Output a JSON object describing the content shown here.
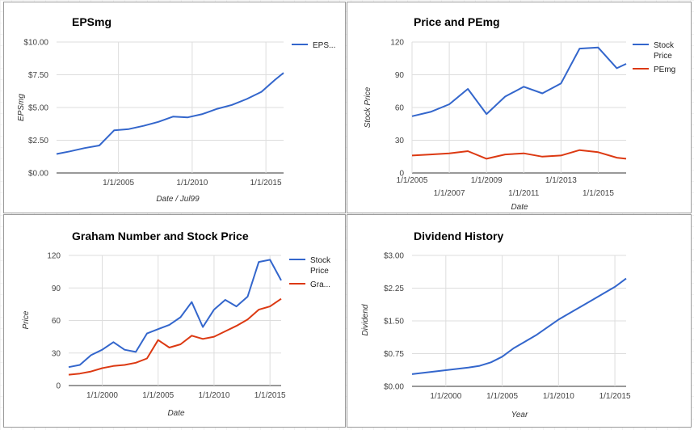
{
  "colors": {
    "blue": "#3366cc",
    "red": "#dc3912",
    "grid": "#dddddd",
    "axis": "#333333"
  },
  "chart_data": [
    {
      "type": "line",
      "title": "EPSmg",
      "xlabel": "Date / Jul99",
      "ylabel": "EPSmg",
      "x_ticks": [
        "1/1/2005",
        "1/1/2010",
        "1/1/2015"
      ],
      "y_ticks": [
        "$0.00",
        "$2.50",
        "$5.00",
        "$7.50",
        "$10.00"
      ],
      "xlim": [
        2000.8,
        2016.2
      ],
      "ylim": [
        0,
        10
      ],
      "grid": true,
      "legend_position": "right",
      "series": [
        {
          "name": "EPS...",
          "color": "#3366cc",
          "x": [
            2000.8,
            2001.7,
            2002.7,
            2003.7,
            2004.7,
            2005.7,
            2006.7,
            2007.7,
            2008.7,
            2009.7,
            2010.7,
            2011.7,
            2012.7,
            2013.7,
            2014.7,
            2015.6,
            2016.2
          ],
          "y": [
            1.45,
            1.65,
            1.9,
            2.1,
            3.25,
            3.35,
            3.6,
            3.9,
            4.3,
            4.25,
            4.5,
            4.9,
            5.2,
            5.65,
            6.2,
            7.1,
            7.65
          ]
        }
      ]
    },
    {
      "type": "line",
      "title": "Price and PEmg",
      "xlabel": "Date",
      "ylabel": "Stock Price",
      "x_ticks_top": [
        "1/1/2005",
        "1/1/2009",
        "1/1/2013"
      ],
      "x_ticks_bottom": [
        "1/1/2007",
        "1/1/2011",
        "1/1/2015"
      ],
      "y_ticks": [
        "0",
        "30",
        "60",
        "90",
        "120"
      ],
      "xlim": [
        2005,
        2016.5
      ],
      "ylim": [
        0,
        120
      ],
      "grid": true,
      "legend_position": "right",
      "series": [
        {
          "name": "Stock Price",
          "color": "#3366cc",
          "x": [
            2005,
            2006,
            2007,
            2008,
            2009,
            2010,
            2011,
            2012,
            2013,
            2014,
            2015,
            2016,
            2016.5
          ],
          "y": [
            52,
            56,
            63,
            77,
            54,
            70,
            79,
            73,
            82,
            114,
            115,
            96,
            100
          ]
        },
        {
          "name": "PEmg",
          "color": "#dc3912",
          "x": [
            2005,
            2006,
            2007,
            2008,
            2009,
            2010,
            2011,
            2012,
            2013,
            2014,
            2015,
            2016,
            2016.5
          ],
          "y": [
            16,
            17,
            18,
            20,
            13,
            17,
            18,
            15,
            16,
            21,
            19,
            14,
            13
          ]
        }
      ]
    },
    {
      "type": "line",
      "title": "Graham Number and Stock Price",
      "xlabel": "Date",
      "ylabel": "Price",
      "x_ticks": [
        "1/1/2000",
        "1/1/2005",
        "1/1/2010",
        "1/1/2015"
      ],
      "y_ticks": [
        "0",
        "30",
        "60",
        "90",
        "120"
      ],
      "xlim": [
        1997,
        2016
      ],
      "ylim": [
        0,
        120
      ],
      "grid": true,
      "legend_position": "right",
      "series": [
        {
          "name": "Stock Price",
          "color": "#3366cc",
          "x": [
            1997,
            1998,
            1999,
            2000,
            2001,
            2002,
            2003,
            2004,
            2005,
            2006,
            2007,
            2008,
            2009,
            2010,
            2011,
            2012,
            2013,
            2014,
            2015,
            2016
          ],
          "y": [
            17,
            19,
            28,
            33,
            40,
            33,
            31,
            48,
            52,
            56,
            63,
            77,
            54,
            70,
            79,
            73,
            82,
            114,
            116,
            97
          ]
        },
        {
          "name": "Gra...",
          "color": "#dc3912",
          "x": [
            1997,
            1998,
            1999,
            2000,
            2001,
            2002,
            2003,
            2004,
            2005,
            2006,
            2007,
            2008,
            2009,
            2010,
            2011,
            2012,
            2013,
            2014,
            2015,
            2016
          ],
          "y": [
            10,
            11,
            13,
            16,
            18,
            19,
            21,
            25,
            42,
            35,
            38,
            46,
            43,
            45,
            50,
            55,
            61,
            70,
            73,
            80
          ]
        }
      ]
    },
    {
      "type": "line",
      "title": "Dividend History",
      "xlabel": "Year",
      "ylabel": "Dividend",
      "x_ticks": [
        "1/1/2000",
        "1/1/2005",
        "1/1/2010",
        "1/1/2015"
      ],
      "y_ticks": [
        "$0.00",
        "$0.75",
        "$1.50",
        "$2.25",
        "$3.00"
      ],
      "xlim": [
        1997,
        2016
      ],
      "ylim": [
        0,
        3
      ],
      "grid": true,
      "legend_position": "none",
      "series": [
        {
          "name": "",
          "color": "#3366cc",
          "x": [
            1997,
            1998,
            1999,
            2000,
            2001,
            2002,
            2003,
            2004,
            2005,
            2006,
            2007,
            2008,
            2009,
            2010,
            2011,
            2012,
            2013,
            2014,
            2015,
            2016
          ],
          "y": [
            0.28,
            0.31,
            0.34,
            0.37,
            0.4,
            0.43,
            0.47,
            0.55,
            0.68,
            0.87,
            1.02,
            1.17,
            1.35,
            1.53,
            1.68,
            1.83,
            1.98,
            2.13,
            2.28,
            2.47
          ]
        }
      ]
    }
  ]
}
